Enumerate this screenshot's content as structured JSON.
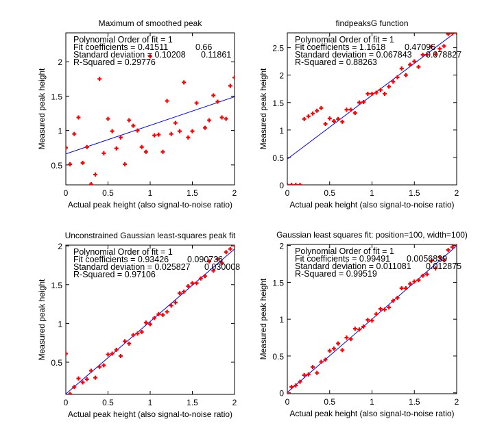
{
  "chart_data": [
    {
      "type": "scatter",
      "title": "Maximum of smoothed peak",
      "xlabel": "Actual peak height (also signal-to-noise ratio)",
      "ylabel": "Measured peak height",
      "xlim": [
        0,
        2
      ],
      "ylim": [
        0.21,
        2.42
      ],
      "xticks": [
        0,
        0.5,
        1,
        1.5,
        2
      ],
      "xticklabels": [
        "0",
        "0.5",
        "1",
        "1.5",
        "2"
      ],
      "yticks": [
        0.5,
        1,
        1.5,
        2
      ],
      "yticklabels": [
        "0.5",
        "1",
        "1.5",
        "2"
      ],
      "grid": false,
      "marker_color": "#ff0000",
      "fit_color": "#0000ff",
      "fit": {
        "slope": 0.41511,
        "intercept": 0.66
      },
      "annotation": {
        "line1": "Polynomial Order of fit = 1",
        "line2": "Fit coefficients = 0.41511",
        "line2_value2": "0.66",
        "line3": "Standard deviation = 0.10208",
        "line3_value2": "0.11861",
        "line4": "R-Squared = 0.29776"
      },
      "points": {
        "x": [
          0,
          0.05,
          0.1,
          0.15,
          0.2,
          0.25,
          0.3,
          0.35,
          0.4,
          0.45,
          0.5,
          0.55,
          0.6,
          0.65,
          0.7,
          0.75,
          0.8,
          0.85,
          0.9,
          0.95,
          1.0,
          1.05,
          1.1,
          1.15,
          1.2,
          1.25,
          1.3,
          1.35,
          1.4,
          1.45,
          1.5,
          1.55,
          1.65,
          1.7,
          1.75,
          1.8,
          1.85,
          1.9,
          1.95,
          2.0
        ],
        "y": [
          0.75,
          0.51,
          0.95,
          1.19,
          0.53,
          0.76,
          0.22,
          0.36,
          1.75,
          0.67,
          1.17,
          0.99,
          0.74,
          0.9,
          0.51,
          1.15,
          1.07,
          1.0,
          0.76,
          0.69,
          2.08,
          0.93,
          0.94,
          0.69,
          1.43,
          0.95,
          1.11,
          0.99,
          1.7,
          0.9,
          0.99,
          1.4,
          1.04,
          1.15,
          1.51,
          1.42,
          1.19,
          1.17,
          1.65,
          1.77
        ]
      }
    },
    {
      "type": "scatter",
      "title": "findpeaksG function",
      "xlabel": "Actual peak height (also signal-to-noise ratio)",
      "ylabel": "Measured peak height",
      "xlim": [
        0,
        2
      ],
      "ylim": [
        0,
        2.77
      ],
      "xticks": [
        0,
        0.5,
        1,
        1.5,
        2
      ],
      "xticklabels": [
        "0",
        "0.5",
        "1",
        "1.5",
        "2"
      ],
      "yticks": [
        0,
        0.5,
        1,
        1.5,
        2,
        2.5
      ],
      "yticklabels": [
        "0",
        "0.5",
        "1",
        "1.5",
        "2",
        "2.5"
      ],
      "grid": false,
      "marker_color": "#ff0000",
      "fit_color": "#0000ff",
      "fit": {
        "slope": 1.1618,
        "intercept": 0.47096
      },
      "annotation": {
        "line1": "Polynomial Order of fit = 1",
        "line2": "Fit coefficients = 1.1618",
        "line2_value2": "0.47096",
        "line3": "Standard deviation = 0.067843",
        "line3_value2": "0.078827",
        "line4": "R-Squared = 0.88263"
      },
      "points": {
        "x": [
          0,
          0.05,
          0.1,
          0.15,
          0.2,
          0.25,
          0.3,
          0.35,
          0.4,
          0.45,
          0.5,
          0.55,
          0.6,
          0.65,
          0.7,
          0.75,
          0.8,
          0.85,
          0.9,
          0.95,
          1.0,
          1.05,
          1.1,
          1.15,
          1.2,
          1.25,
          1.3,
          1.35,
          1.4,
          1.45,
          1.5,
          1.55,
          1.6,
          1.65,
          1.7,
          1.75,
          1.8,
          1.85,
          1.9,
          1.95,
          2.0
        ],
        "y": [
          0,
          0,
          0,
          0,
          1.2,
          1.25,
          1.3,
          1.35,
          1.4,
          1.11,
          1.21,
          1.16,
          1.2,
          1.15,
          1.37,
          1.37,
          1.31,
          1.5,
          1.51,
          1.66,
          1.66,
          1.68,
          1.73,
          1.66,
          1.79,
          1.88,
          1.96,
          2.12,
          2.0,
          2.19,
          2.25,
          2.15,
          2.37,
          2.37,
          2.52,
          2.38,
          2.48,
          2.53,
          2.75,
          2.76,
          2.77
        ]
      }
    },
    {
      "type": "scatter",
      "title": "Unconstrained Gaussian least-squares peak fit",
      "xlabel": "Actual peak height (also signal-to-noise ratio)",
      "ylabel": "Measured peak height",
      "xlim": [
        0,
        2
      ],
      "ylim": [
        0.085,
        2.01
      ],
      "xticks": [
        0,
        0.5,
        1,
        1.5,
        2
      ],
      "xticklabels": [
        "0",
        "0.5",
        "1",
        "1.5",
        "2"
      ],
      "yticks": [
        0.5,
        1,
        1.5,
        2
      ],
      "yticklabels": [
        "0.5",
        "1",
        "1.5",
        "2"
      ],
      "grid": false,
      "marker_color": "#ff0000",
      "fit_color": "#0000ff",
      "fit": {
        "slope": 0.93426,
        "intercept": 0.090736
      },
      "annotation": {
        "line1": "Polynomial Order of fit = 1",
        "line2": "Fit coefficients = 0.93426",
        "line2_value2": "0.090736",
        "line3": "Standard deviation = 0.025827",
        "line3_value2": "0.030008",
        "line4": "R-Squared = 0.97106"
      },
      "points": {
        "x": [
          0,
          0.05,
          0.1,
          0.15,
          0.2,
          0.25,
          0.3,
          0.35,
          0.4,
          0.45,
          0.5,
          0.55,
          0.6,
          0.65,
          0.7,
          0.75,
          0.8,
          0.85,
          0.9,
          0.95,
          1.0,
          1.05,
          1.1,
          1.15,
          1.2,
          1.25,
          1.3,
          1.35,
          1.4,
          1.45,
          1.5,
          1.55,
          1.6,
          1.65,
          1.7,
          1.75,
          1.8,
          1.85,
          1.9,
          1.95,
          2.0
        ],
        "y": [
          0.61,
          0.09,
          0.18,
          0.29,
          0.24,
          0.28,
          0.39,
          0.3,
          0.44,
          0.46,
          0.6,
          0.61,
          0.66,
          0.58,
          0.77,
          0.74,
          0.85,
          0.87,
          0.89,
          1.01,
          0.99,
          1.07,
          1.12,
          1.11,
          1.15,
          1.23,
          1.27,
          1.39,
          1.41,
          1.48,
          1.52,
          1.52,
          1.58,
          1.61,
          1.8,
          1.68,
          1.83,
          1.78,
          1.92,
          1.96,
          2.01
        ]
      }
    },
    {
      "type": "scatter",
      "title": "Gaussian least squares fit: position=100, width=100)",
      "xlabel": "Actual peak height (also signal-to-noise ratio)",
      "ylabel": "Measured peak height",
      "xlim": [
        0,
        2
      ],
      "ylim": [
        -0.012,
        2.015
      ],
      "xticks": [
        0,
        0.5,
        1,
        1.5,
        2
      ],
      "xticklabels": [
        "0",
        "0.5",
        "1",
        "1.5",
        "2"
      ],
      "yticks": [
        0,
        0.5,
        1,
        1.5,
        2
      ],
      "yticklabels": [
        "0",
        "0.5",
        "1",
        "1.5",
        "2"
      ],
      "grid": false,
      "marker_color": "#ff0000",
      "fit_color": "#0000ff",
      "fit": {
        "slope": 0.99491,
        "intercept": 0.0056839
      },
      "annotation": {
        "line1": "Polynomial Order of fit = 1",
        "line2": "Fit coefficients = 0.99491",
        "line2_value2": "0.0056839",
        "line3": "Standard deviation = 0.011081",
        "line3_value2": "0.012875",
        "line4": "R-Squared = 0.99519"
      },
      "points": {
        "x": [
          0,
          0.05,
          0.1,
          0.15,
          0.2,
          0.25,
          0.3,
          0.35,
          0.4,
          0.45,
          0.5,
          0.55,
          0.6,
          0.65,
          0.7,
          0.75,
          0.8,
          0.85,
          0.9,
          0.95,
          1.0,
          1.05,
          1.1,
          1.15,
          1.2,
          1.25,
          1.3,
          1.35,
          1.4,
          1.45,
          1.5,
          1.55,
          1.6,
          1.65,
          1.7,
          1.75,
          1.8,
          1.85,
          1.9,
          1.95,
          2.0
        ],
        "y": [
          -0.01,
          0.08,
          0.1,
          0.15,
          0.24,
          0.25,
          0.35,
          0.27,
          0.42,
          0.45,
          0.57,
          0.6,
          0.67,
          0.58,
          0.75,
          0.73,
          0.87,
          0.86,
          0.9,
          0.99,
          0.98,
          1.07,
          1.14,
          1.13,
          1.16,
          1.25,
          1.29,
          1.42,
          1.42,
          1.48,
          1.51,
          1.53,
          1.59,
          1.61,
          1.79,
          1.69,
          1.84,
          1.8,
          1.94,
          1.98,
          2.02
        ]
      }
    }
  ]
}
